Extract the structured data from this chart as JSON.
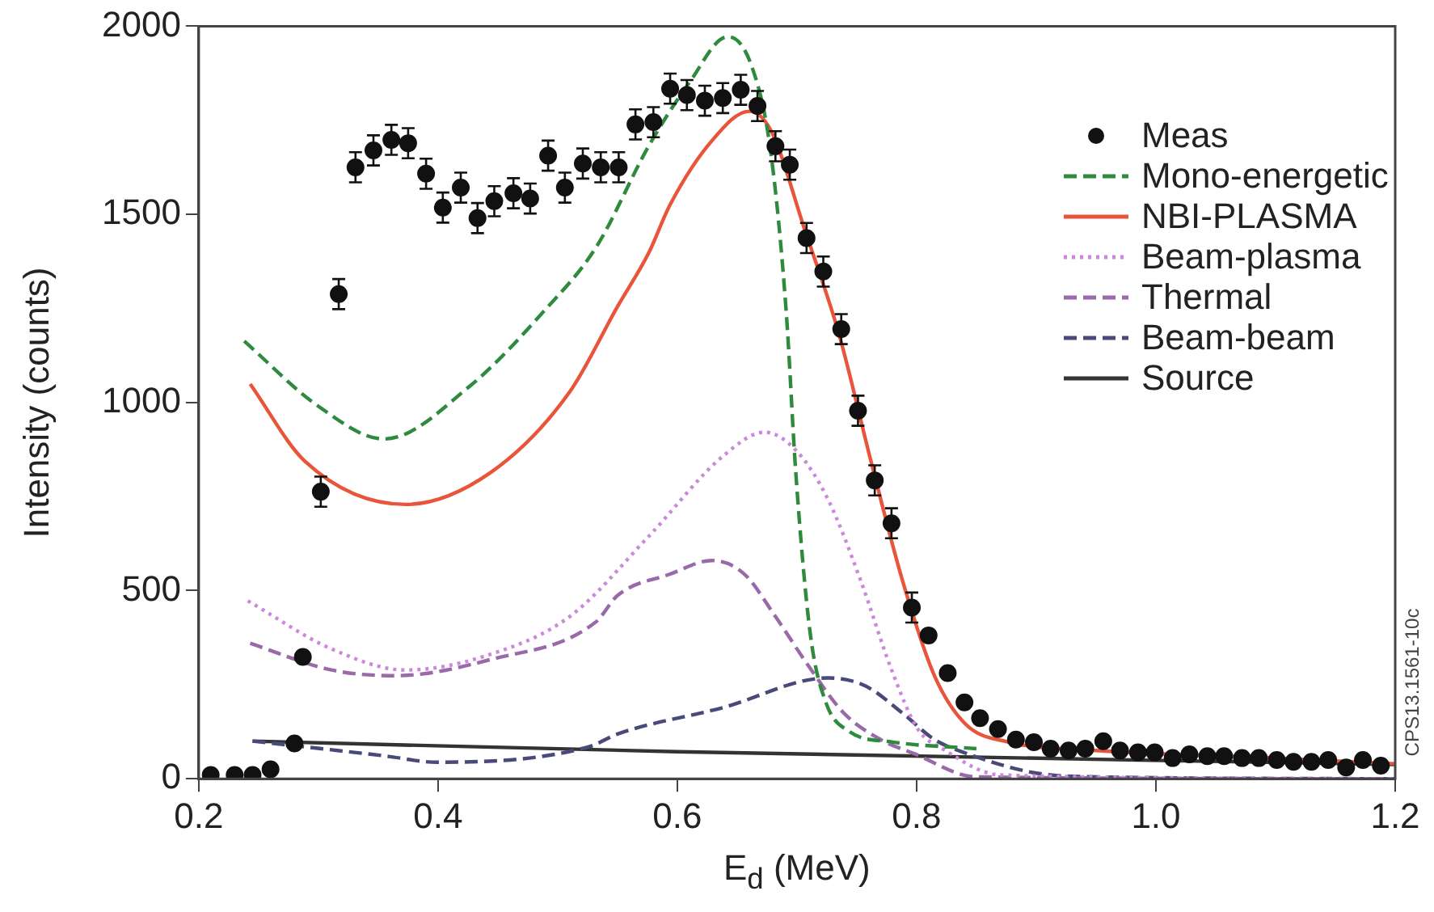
{
  "chart_data": {
    "type": "line",
    "xlabel": "E$_{d}$ (MeV)",
    "ylabel": "Intensity (counts)",
    "xlim": [
      0.2,
      1.2
    ],
    "xticks": [
      0.2,
      0.4,
      0.6,
      0.8,
      {
        "value": 1.0,
        "label": "1.0"
      },
      1.2
    ],
    "ylim": [
      0,
      2000
    ],
    "yticks": [
      0,
      500,
      1000,
      1500,
      2000
    ],
    "grid": false,
    "legend": "top right",
    "marker": "none",
    "annotations": [
      "CPS13.1561-10c"
    ],
    "series": [
      {
        "name": "Meas",
        "type": "scatter",
        "marker": "circle",
        "color": "#111111",
        "x": [
          0.21,
          0.23,
          0.245,
          0.26,
          0.28,
          0.287,
          0.302,
          0.317,
          0.331,
          0.346,
          0.361,
          0.375,
          0.39,
          0.404,
          0.419,
          0.433,
          0.447,
          0.463,
          0.477,
          0.492,
          0.506,
          0.521,
          0.536,
          0.551,
          0.565,
          0.58,
          0.594,
          0.608,
          0.623,
          0.638,
          0.653,
          0.667,
          0.682,
          0.694,
          0.708,
          0.722,
          0.737,
          0.751,
          0.765,
          0.779,
          0.796,
          0.81,
          0.826,
          0.84,
          0.853,
          0.868,
          0.883,
          0.898,
          0.912,
          0.927,
          0.941,
          0.956,
          0.97,
          0.985,
          0.999,
          1.014,
          1.028,
          1.043,
          1.057,
          1.072,
          1.086,
          1.101,
          1.115,
          1.13,
          1.144,
          1.159,
          1.173,
          1.188
        ],
        "values": [
          10,
          10,
          10,
          25,
          94,
          324,
          763,
          1288,
          1625,
          1670,
          1698,
          1689,
          1608,
          1518,
          1571,
          1490,
          1535,
          1556,
          1542,
          1656,
          1571,
          1635,
          1625,
          1625,
          1739,
          1745,
          1834,
          1817,
          1802,
          1809,
          1831,
          1788,
          1681,
          1632,
          1437,
          1348,
          1195,
          978,
          793,
          679,
          455,
          381,
          281,
          203,
          161,
          132,
          104,
          97,
          80,
          75,
          80,
          100,
          75,
          70,
          70,
          55,
          65,
          60,
          60,
          55,
          55,
          50,
          45,
          45,
          50,
          30,
          50,
          35
        ],
        "errors": [
          null,
          null,
          null,
          null,
          null,
          null,
          40,
          40,
          40,
          40,
          40,
          40,
          40,
          40,
          40,
          40,
          40,
          40,
          40,
          40,
          40,
          40,
          40,
          40,
          40,
          40,
          40,
          40,
          40,
          40,
          40,
          40,
          40,
          40,
          40,
          40,
          40,
          40,
          40,
          40,
          40,
          null,
          null,
          null,
          null,
          null,
          null,
          null,
          null,
          null,
          null,
          null,
          null,
          null,
          null,
          null,
          null,
          null,
          null,
          null,
          null,
          null,
          null,
          null,
          null,
          null,
          null,
          null
        ]
      },
      {
        "name": "Mono-energetic",
        "line_style": "dashed",
        "color": "#2e8b3e",
        "x": [
          0.238,
          0.3,
          0.355,
          0.426,
          0.488,
          0.532,
          0.576,
          0.61,
          0.642,
          0.662,
          0.678,
          0.691,
          0.699,
          0.711,
          0.724,
          0.744,
          0.779,
          0.85
        ],
        "values": [
          1163,
          990,
          903,
          1042,
          1241,
          1412,
          1681,
          1850,
          1972,
          1895,
          1667,
          1241,
          814,
          388,
          204,
          125,
          98,
          80
        ]
      },
      {
        "name": "NBI-PLASMA",
        "line_style": "solid",
        "color": "#e8553a",
        "x": [
          0.243,
          0.289,
          0.373,
          0.444,
          0.51,
          0.55,
          0.576,
          0.594,
          0.629,
          0.66,
          0.678,
          0.707,
          0.735,
          0.762,
          0.788,
          0.815,
          0.841,
          0.876,
          0.95,
          1.1,
          1.2
        ],
        "values": [
          1049,
          843,
          729,
          814,
          1028,
          1255,
          1397,
          1526,
          1696,
          1774,
          1724,
          1454,
          1183,
          842,
          529,
          273,
          145,
          98,
          75,
          55,
          40
        ]
      },
      {
        "name": "Beam-plasma",
        "line_style": "dotted",
        "color": "#cc88dd",
        "x": [
          0.241,
          0.311,
          0.373,
          0.444,
          0.51,
          0.576,
          0.638,
          0.673,
          0.7,
          0.726,
          0.753,
          0.779,
          0.801,
          0.823,
          0.87,
          1.2
        ],
        "values": [
          473,
          345,
          289,
          331,
          431,
          644,
          857,
          921,
          870,
          742,
          529,
          290,
          132,
          77,
          10,
          0
        ]
      },
      {
        "name": "Thermal",
        "line_style": "dashed",
        "color": "#9a6aa8",
        "x": [
          0.243,
          0.311,
          0.364,
          0.444,
          0.532,
          0.55,
          0.594,
          0.629,
          0.656,
          0.682,
          0.709,
          0.739,
          0.77,
          0.797,
          0.85,
          1.2
        ],
        "values": [
          360,
          289,
          274,
          317,
          417,
          487,
          544,
          580,
          544,
          431,
          303,
          175,
          104,
          68,
          5,
          0
        ]
      },
      {
        "name": "Beam-beam",
        "line_style": "dashed",
        "color": "#4a4a7a",
        "x": [
          0.245,
          0.355,
          0.399,
          0.526,
          0.55,
          0.638,
          0.726,
          0.757,
          0.788,
          0.815,
          0.841,
          0.9,
          0.95,
          1.2
        ],
        "values": [
          100,
          61,
          44,
          85,
          119,
          189,
          268,
          247,
          175,
          104,
          68,
          15,
          5,
          0
        ]
      },
      {
        "name": "Source",
        "line_style": "solid",
        "color": "#333333",
        "x": [
          0.245,
          0.6,
          1.2
        ],
        "values": [
          100,
          72,
          38
        ]
      }
    ]
  }
}
